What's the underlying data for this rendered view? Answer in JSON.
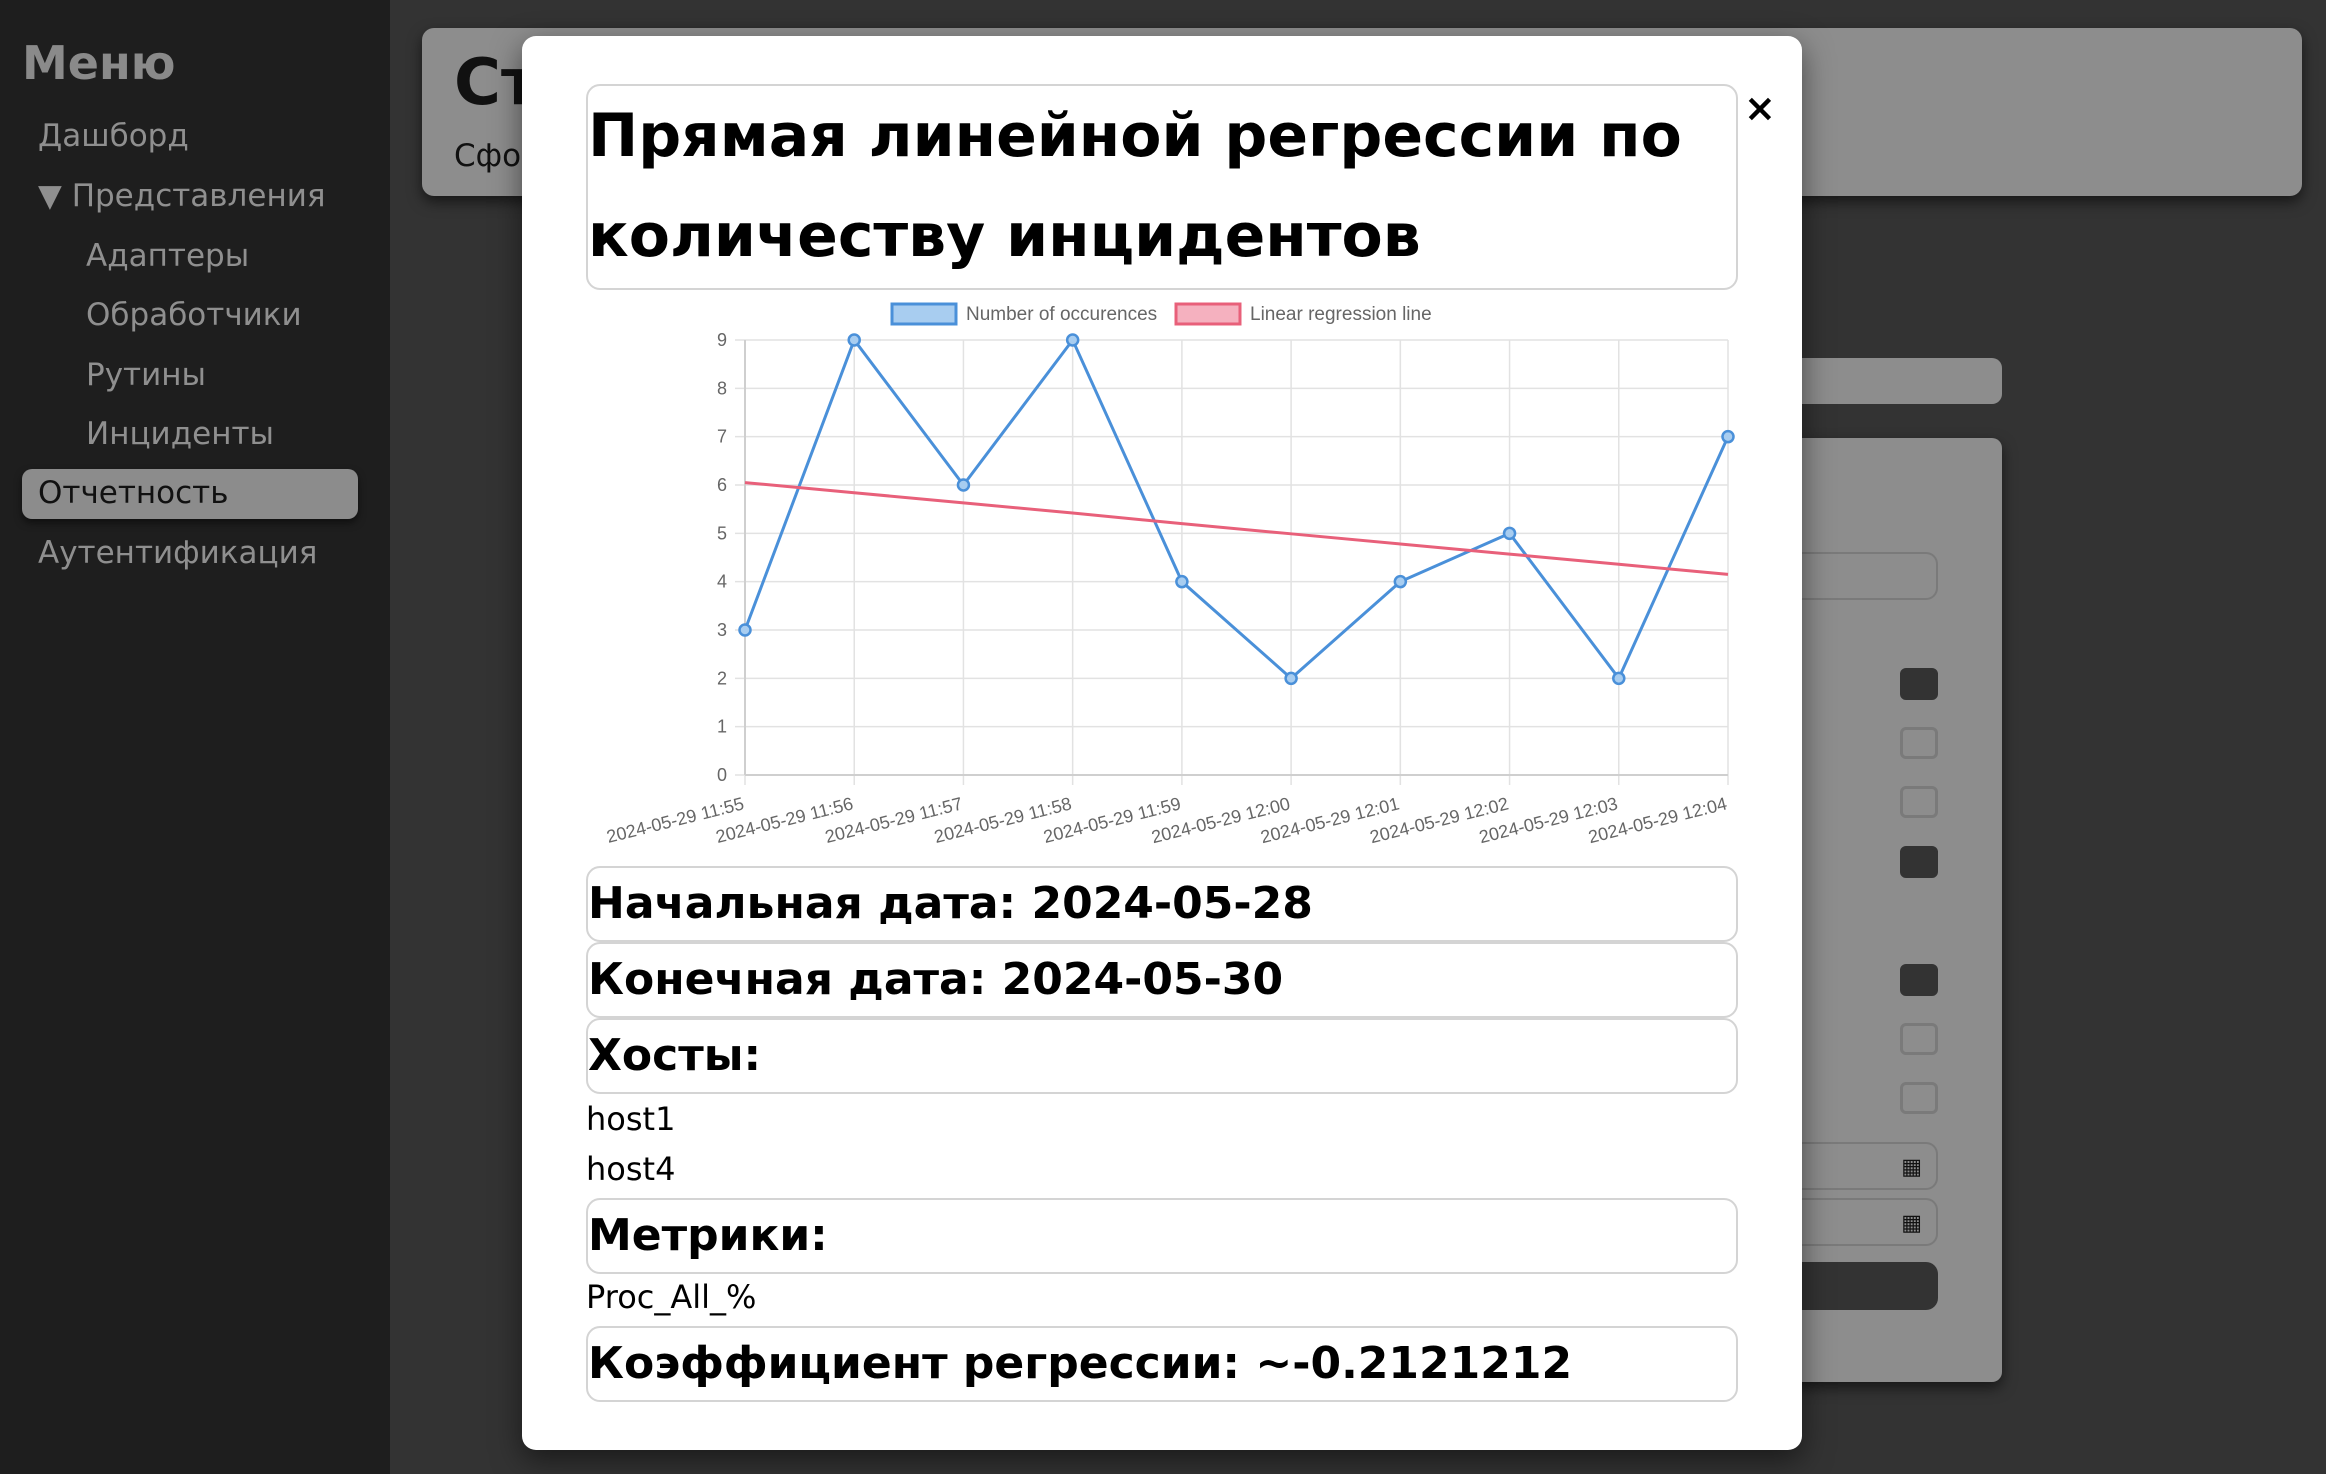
{
  "sidebar": {
    "title": "Меню",
    "items": [
      {
        "label": "Дашборд",
        "active": false
      },
      {
        "label": "▼ Представления",
        "active": false
      },
      {
        "label": "Адаптеры",
        "active": false
      },
      {
        "label": "Обработчики",
        "active": false
      },
      {
        "label": "Рутины",
        "active": false
      },
      {
        "label": "Инциденты",
        "active": false
      },
      {
        "label": "Отчетность",
        "active": true
      },
      {
        "label": "Аутентификация",
        "active": false
      }
    ]
  },
  "background": {
    "header_title": "Ст",
    "header_subtitle": "Сфо",
    "checkboxes": [
      true,
      false,
      false,
      true,
      true,
      false,
      false
    ]
  },
  "modal": {
    "close_label": "×",
    "title": "Прямая линейной регрессии по количеству инцидентов",
    "start_date": "Начальная дата: 2024-05-28",
    "end_date": "Конечная дата: 2024-05-30",
    "hosts_label": "Хосты:",
    "hosts": [
      "host1",
      "host4"
    ],
    "metrics_label": "Метрики:",
    "metrics": [
      "Proc_All_%"
    ],
    "coefficient": "Коэффициент регрессии: ~-0.2121212"
  },
  "chart_data": {
    "type": "line",
    "categories": [
      "2024-05-29 11:55",
      "2024-05-29 11:56",
      "2024-05-29 11:57",
      "2024-05-29 11:58",
      "2024-05-29 11:59",
      "2024-05-29 12:00",
      "2024-05-29 12:01",
      "2024-05-29 12:02",
      "2024-05-29 12:03",
      "2024-05-29 12:04"
    ],
    "series": [
      {
        "name": "Number of occurences",
        "values": [
          3,
          9,
          6,
          9,
          4,
          2,
          4,
          5,
          2,
          7
        ],
        "color": "#4a90d9",
        "fill": "#a8cdf0"
      },
      {
        "name": "Linear regression line",
        "values": [
          6.05,
          5.84,
          5.63,
          5.42,
          5.2,
          4.99,
          4.78,
          4.57,
          4.36,
          4.15
        ],
        "color": "#e8607a",
        "fill": "#f5b1bf"
      }
    ],
    "ylim": [
      0,
      9
    ],
    "yticks": [
      0,
      1,
      2,
      3,
      4,
      5,
      6,
      7,
      8,
      9
    ],
    "grid": true,
    "legend": "top"
  }
}
